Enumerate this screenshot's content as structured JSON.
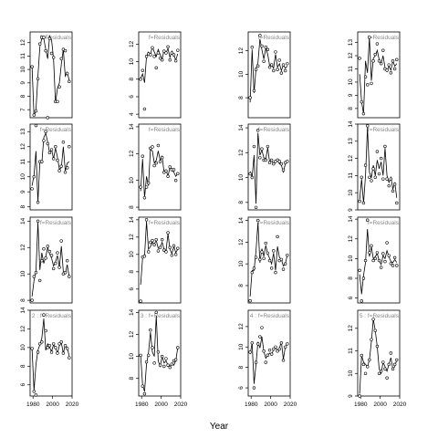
{
  "chart_data": {
    "type": "line",
    "xlabel": "Year",
    "ylabel": "",
    "xlim": [
      1977,
      2020
    ],
    "x_ticks": [
      1980,
      2000,
      2020
    ],
    "panel_title_suffix": "f=Residuals",
    "panel_prefixes": [
      "",
      "",
      "",
      "2",
      "",
      "",
      "",
      "3",
      "",
      "",
      "",
      "4",
      "",
      "",
      "",
      "5"
    ],
    "panels": [
      {
        "ylim": [
          6.4,
          12.8
        ],
        "yticks": [
          7,
          8,
          9,
          10,
          11,
          12
        ],
        "x": [
          1979,
          1981,
          1983,
          1985,
          1987,
          1989,
          1991,
          1993,
          1995,
          1997,
          1999,
          2001,
          2003,
          2005,
          2007,
          2009,
          2011,
          2013,
          2015,
          2017
        ],
        "y": [
          10.2,
          6.5,
          7.0,
          9.5,
          11.7,
          12.3,
          12.3,
          11.5,
          10.8,
          12.5,
          12.2,
          10.8,
          7.5,
          8.6,
          9.0,
          10.4,
          11.5,
          9.5,
          9.8,
          9.2
        ],
        "observed": [
          10.2,
          6.6,
          6.9,
          9.3,
          11.9,
          12.4,
          12.4,
          11.4,
          6.4,
          12.3,
          11.2,
          10.9,
          7.6,
          7.6,
          8.7,
          10.8,
          11.5,
          11.4,
          9.7,
          9.1
        ]
      },
      {
        "ylim": [
          7.8,
          13.5
        ],
        "yticks": [
          8,
          9,
          10,
          11,
          12,
          13
        ],
        "x": [
          1979,
          1981,
          1983,
          1985,
          1987,
          1989,
          1991,
          1993,
          1995,
          1997,
          1999,
          2001,
          2003,
          2005,
          2007,
          2009,
          2011,
          2013,
          2015,
          2017
        ],
        "y": [
          9.4,
          10.1,
          11.7,
          8.3,
          11.0,
          10.9,
          12.6,
          12.9,
          12.3,
          11.6,
          11.8,
          11.2,
          11.9,
          11.3,
          10.5,
          10.6,
          12.0,
          10.4,
          10.9,
          11.0
        ],
        "observed": [
          9.2,
          10.0,
          13.4,
          8.3,
          11.0,
          11.0,
          12.4,
          13.0,
          12.2,
          11.6,
          11.8,
          11.2,
          12.0,
          11.1,
          10.4,
          10.7,
          12.3,
          10.3,
          10.6,
          12.0
        ]
      },
      {
        "ylim": [
          7.8,
          14.3
        ],
        "yticks": [
          8,
          10,
          12,
          14
        ],
        "x": [
          1979,
          1981,
          1983,
          1985,
          1987,
          1989,
          1991,
          1993,
          1995,
          1997,
          1999,
          2001,
          2003,
          2005,
          2007,
          2009,
          2011,
          2013,
          2015,
          2017
        ],
        "y": [
          8.3,
          9.5,
          10.2,
          13.9,
          10.3,
          11.6,
          10.8,
          11.3,
          12.0,
          11.5,
          11.2,
          10.6,
          10.9,
          11.4,
          10.5,
          12.1,
          10.2,
          10.0,
          10.7,
          9.8
        ],
        "observed": [
          8.0,
          9.8,
          10.1,
          14.0,
          9.5,
          11.0,
          11.9,
          11.2,
          12.1,
          11.7,
          11.4,
          10.4,
          10.8,
          11.6,
          10.5,
          12.5,
          10.0,
          10.1,
          11.0,
          9.8
        ]
      },
      {
        "ylim": [
          4.8,
          14.0
        ],
        "yticks": [
          6,
          8,
          10,
          12,
          14
        ],
        "x": [
          1979,
          1981,
          1983,
          1985,
          1987,
          1989,
          1991,
          1993,
          1995,
          1997,
          1999,
          2001,
          2003,
          2005,
          2007,
          2009,
          2011,
          2013,
          2015,
          2017
        ],
        "y": [
          9.8,
          5.4,
          8.2,
          9.7,
          10.3,
          11.0,
          13.1,
          9.7,
          10.4,
          10.0,
          9.6,
          10.3,
          10.0,
          9.4,
          10.2,
          10.5,
          9.4,
          10.3,
          10.0,
          9.1
        ],
        "observed": [
          9.9,
          5.3,
          4.9,
          9.5,
          10.4,
          10.6,
          13.5,
          11.8,
          10.0,
          10.2,
          9.5,
          10.4,
          10.0,
          9.4,
          10.4,
          10.6,
          9.4,
          10.2,
          9.9,
          8.9
        ]
      },
      {
        "ylim": [
          3.6,
          13.4
        ],
        "yticks": [
          4,
          6,
          8,
          10,
          12
        ],
        "x": [
          1979,
          1981,
          1983,
          1985,
          1987,
          1989,
          1991,
          1993,
          1995,
          1997,
          1999,
          2001,
          2003,
          2005,
          2007,
          2009,
          2011,
          2013,
          2015,
          2017
        ],
        "y": [
          8.1,
          8.6,
          7.6,
          10.6,
          11.1,
          10.8,
          11.7,
          11.1,
          10.6,
          11.4,
          10.8,
          10.3,
          11.3,
          11.0,
          11.5,
          10.5,
          11.2,
          10.7,
          10.2,
          10.9
        ],
        "observed": [
          8.0,
          9.0,
          4.6,
          10.6,
          10.9,
          10.8,
          11.6,
          10.6,
          9.3,
          11.0,
          10.4,
          10.2,
          11.2,
          11.0,
          11.7,
          10.2,
          11.0,
          10.8,
          10.1,
          11.3
        ]
      },
      {
        "ylim": [
          7.8,
          14.2
        ],
        "yticks": [
          8,
          10,
          12,
          14
        ],
        "x": [
          1979,
          1981,
          1983,
          1985,
          1987,
          1989,
          1991,
          1993,
          1995,
          1997,
          1999,
          2001,
          2003,
          2005,
          2007,
          2009,
          2011,
          2013,
          2015,
          2017
        ],
        "y": [
          9.2,
          11.6,
          8.7,
          10.3,
          9.6,
          12.3,
          12.2,
          11.3,
          11.5,
          12.2,
          11.5,
          11.8,
          10.6,
          10.8,
          10.3,
          11.0,
          10.8,
          10.6,
          10.3,
          10.5
        ],
        "observed": [
          9.5,
          11.8,
          8.7,
          9.5,
          9.8,
          12.4,
          12.5,
          11.1,
          11.3,
          12.6,
          11.4,
          11.7,
          10.6,
          10.7,
          10.3,
          11.0,
          10.8,
          10.8,
          10.0,
          10.5
        ]
      },
      {
        "ylim": [
          4.4,
          14.3
        ],
        "yticks": [
          6,
          8,
          10,
          12,
          14
        ],
        "x": [
          1979,
          1981,
          1983,
          1985,
          1987,
          1989,
          1991,
          1993,
          1995,
          1997,
          1999,
          2001,
          2003,
          2005,
          2007,
          2009,
          2011,
          2013,
          2015,
          2017
        ],
        "y": [
          6.5,
          9.6,
          9.8,
          13.8,
          10.6,
          10.9,
          11.4,
          11.2,
          11.6,
          10.7,
          10.8,
          11.4,
          10.6,
          10.4,
          12.4,
          10.6,
          10.1,
          10.9,
          10.2,
          10.6
        ],
        "observed": [
          4.6,
          9.7,
          9.8,
          14.0,
          10.3,
          11.4,
          11.6,
          11.1,
          11.7,
          10.4,
          10.8,
          11.7,
          10.5,
          10.3,
          12.5,
          10.8,
          9.9,
          11.0,
          10.0,
          10.7
        ]
      },
      {
        "ylim": [
          6.4,
          14.2
        ],
        "yticks": [
          8,
          10,
          12,
          14
        ],
        "x": [
          1979,
          1981,
          1983,
          1985,
          1987,
          1989,
          1991,
          1993,
          1995,
          1997,
          1999,
          2001,
          2003,
          2005,
          2007,
          2009,
          2011,
          2013,
          2015,
          2017
        ],
        "y": [
          10.1,
          7.4,
          6.8,
          9.3,
          10.3,
          12.2,
          10.4,
          10.0,
          13.7,
          9.6,
          9.1,
          10.0,
          9.4,
          9.6,
          9.2,
          9.1,
          9.4,
          9.2,
          9.6,
          10.8
        ],
        "observed": [
          10.1,
          7.3,
          6.6,
          9.5,
          10.1,
          12.4,
          10.8,
          9.4,
          14.0,
          10.4,
          9.2,
          10.0,
          9.1,
          9.8,
          9.2,
          9.0,
          9.3,
          9.6,
          9.7,
          10.8
        ]
      },
      {
        "ylim": [
          6.3,
          13.6
        ],
        "yticks": [
          6,
          8,
          10,
          12,
          14
        ],
        "x": [
          1979,
          1981,
          1983,
          1985,
          1987,
          1989,
          1991,
          1993,
          1995,
          1997,
          1999,
          2001,
          2003,
          2005,
          2007,
          2009,
          2011,
          2013,
          2015,
          2017
        ],
        "y": [
          7.6,
          12.1,
          8.4,
          10.5,
          11.0,
          13.0,
          12.1,
          11.3,
          12.2,
          11.7,
          10.7,
          10.8,
          10.5,
          11.7,
          10.6,
          10.9,
          10.3,
          10.8,
          10.5,
          10.7
        ],
        "observed": [
          8.0,
          12.3,
          8.6,
          10.4,
          10.7,
          13.3,
          12.4,
          11.1,
          12.3,
          12.1,
          10.6,
          10.8,
          10.3,
          11.9,
          10.4,
          11.2,
          10.1,
          10.8,
          10.3,
          10.9
        ]
      },
      {
        "ylim": [
          7.4,
          14.3
        ],
        "yticks": [
          8,
          10,
          12,
          14
        ],
        "x": [
          1979,
          1981,
          1983,
          1985,
          1987,
          1989,
          1991,
          1993,
          1995,
          1997,
          1999,
          2001,
          2003,
          2005,
          2007,
          2009,
          2011,
          2013,
          2015,
          2017
        ],
        "y": [
          10.5,
          10.0,
          11.8,
          7.9,
          13.6,
          11.8,
          12.2,
          11.6,
          11.5,
          12.4,
          11.2,
          11.4,
          11.1,
          11.3,
          11.5,
          11.1,
          11.0,
          10.4,
          11.1,
          11.3
        ],
        "observed": [
          10.3,
          10.0,
          12.5,
          7.6,
          13.8,
          11.6,
          12.3,
          11.4,
          11.4,
          12.5,
          11.2,
          11.4,
          11.1,
          11.3,
          11.4,
          11.3,
          11.1,
          10.6,
          11.2,
          11.3
        ]
      },
      {
        "ylim": [
          6.4,
          14.3
        ],
        "yticks": [
          6,
          8,
          10,
          12,
          14
        ],
        "x": [
          1979,
          1981,
          1983,
          1985,
          1987,
          1989,
          1991,
          1993,
          1995,
          1997,
          1999,
          2001,
          2003,
          2005,
          2007,
          2009,
          2011,
          2013,
          2015,
          2017
        ],
        "y": [
          7.0,
          9.4,
          9.4,
          11.2,
          13.8,
          10.1,
          11.4,
          10.7,
          11.7,
          10.9,
          10.5,
          10.0,
          11.0,
          9.4,
          11.6,
          10.6,
          10.4,
          9.8,
          10.0,
          10.8
        ],
        "observed": [
          6.6,
          9.2,
          9.6,
          10.6,
          14.0,
          10.4,
          11.1,
          10.5,
          11.9,
          11.0,
          10.3,
          9.6,
          11.2,
          9.2,
          12.5,
          10.3,
          10.4,
          9.5,
          10.0,
          10.8
        ]
      },
      {
        "ylim": [
          5.2,
          13.6
        ],
        "yticks": [
          6,
          8,
          10,
          12
        ],
        "x": [
          1979,
          1981,
          1983,
          1985,
          1987,
          1989,
          1991,
          1993,
          1995,
          1997,
          1999,
          2001,
          2003,
          2005,
          2007,
          2009,
          2011,
          2013,
          2015,
          2017
        ],
        "y": [
          9.3,
          10.4,
          6.4,
          8.3,
          10.5,
          9.9,
          11.0,
          9.6,
          8.9,
          9.2,
          9.4,
          9.2,
          9.8,
          10.0,
          9.6,
          9.9,
          10.5,
          8.8,
          10.0,
          10.3
        ],
        "observed": [
          9.5,
          10.4,
          6.0,
          8.5,
          10.3,
          11.0,
          11.9,
          9.6,
          8.5,
          9.2,
          9.7,
          9.3,
          9.8,
          10.0,
          9.6,
          9.8,
          10.4,
          8.7,
          10.0,
          10.3
        ]
      },
      {
        "ylim": [
          7.3,
          13.8
        ],
        "yticks": [
          8,
          9,
          10,
          11,
          12,
          13
        ],
        "x": [
          1979,
          1981,
          1983,
          1985,
          1987,
          1989,
          1991,
          1993,
          1995,
          1997,
          1999,
          2001,
          2003,
          2005,
          2007,
          2009,
          2011,
          2013,
          2015,
          2017
        ],
        "y": [
          10.6,
          8.5,
          7.6,
          11.6,
          10.7,
          13.4,
          10.1,
          11.8,
          12.0,
          12.4,
          11.7,
          11.4,
          12.0,
          11.1,
          10.8,
          11.2,
          10.9,
          11.6,
          11.2,
          11.4
        ],
        "observed": [
          11.8,
          8.5,
          7.6,
          10.4,
          9.8,
          13.4,
          9.9,
          11.6,
          12.1,
          12.9,
          11.6,
          11.4,
          12.4,
          11.0,
          10.9,
          11.3,
          10.7,
          11.6,
          11.0,
          11.7
        ]
      },
      {
        "ylim": [
          9.0,
          14.0
        ],
        "yticks": [
          9,
          10,
          11,
          12,
          13,
          14
        ],
        "x": [
          1979,
          1981,
          1983,
          1985,
          1987,
          1989,
          1991,
          1993,
          1995,
          1997,
          1999,
          2001,
          2003,
          2005,
          2007,
          2009,
          2011,
          2013,
          2015,
          2017
        ],
        "y": [
          9.6,
          10.8,
          9.4,
          11.0,
          13.8,
          11.2,
          10.9,
          11.6,
          11.0,
          11.9,
          11.4,
          11.8,
          11.0,
          12.6,
          11.0,
          10.6,
          10.9,
          10.2,
          10.6,
          9.7
        ],
        "observed": [
          9.5,
          10.9,
          9.4,
          11.6,
          13.9,
          10.9,
          10.7,
          11.4,
          10.9,
          12.4,
          11.1,
          12.0,
          10.8,
          12.7,
          10.8,
          10.4,
          10.8,
          10.1,
          10.5,
          9.4
        ]
      },
      {
        "ylim": [
          5.5,
          14.2
        ],
        "yticks": [
          6,
          8,
          10,
          12,
          14
        ],
        "x": [
          1979,
          1981,
          1983,
          1985,
          1987,
          1989,
          1991,
          1993,
          1995,
          1997,
          1999,
          2001,
          2003,
          2005,
          2007,
          2009,
          2011,
          2013,
          2015,
          2017
        ],
        "y": [
          8.4,
          6.4,
          8.3,
          9.6,
          13.0,
          10.2,
          11.2,
          10.0,
          10.2,
          10.5,
          9.8,
          9.4,
          10.3,
          10.0,
          10.8,
          10.2,
          9.7,
          9.6,
          9.9,
          9.6
        ],
        "observed": [
          8.8,
          5.7,
          8.0,
          9.8,
          13.9,
          10.6,
          11.3,
          9.8,
          10.0,
          10.6,
          9.8,
          9.1,
          10.5,
          9.7,
          11.6,
          10.3,
          9.5,
          9.3,
          10.1,
          9.3
        ]
      },
      {
        "ylim": [
          9.0,
          12.8
        ],
        "yticks": [
          9.0,
          10.0,
          11.0,
          12.0
        ],
        "x": [
          1979,
          1981,
          1983,
          1985,
          1987,
          1989,
          1991,
          1993,
          1995,
          1997,
          1999,
          2001,
          2003,
          2005,
          2007,
          2009,
          2011,
          2013,
          2015,
          2017
        ],
        "y": [
          9.1,
          10.8,
          10.5,
          10.4,
          10.3,
          10.6,
          11.4,
          12.4,
          11.9,
          11.2,
          10.2,
          10.0,
          10.5,
          10.3,
          10.1,
          10.4,
          10.7,
          10.2,
          10.3,
          10.6
        ],
        "observed": [
          9.0,
          10.8,
          10.4,
          10.0,
          10.3,
          10.6,
          11.5,
          12.4,
          11.9,
          11.2,
          10.0,
          10.1,
          10.5,
          10.2,
          9.8,
          10.4,
          10.9,
          10.2,
          10.4,
          10.6
        ]
      }
    ]
  }
}
